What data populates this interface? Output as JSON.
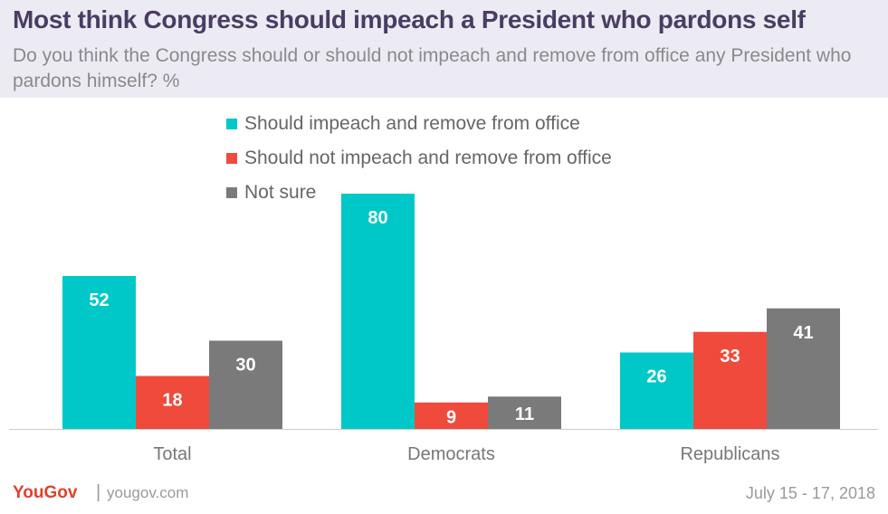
{
  "header": {
    "title": "Most think Congress should impeach a President who pardons self",
    "subtitle": "Do you think the Congress should or should not impeach and remove from office any President who pardons himself? %"
  },
  "footer": {
    "logo": "YouGov",
    "url": "yougov.com",
    "date": "July 15 - 17, 2018"
  },
  "chart_data": {
    "type": "bar",
    "title": "Most think Congress should impeach a President who pardons self",
    "subtitle": "Do you think the Congress should or should not impeach and remove from office any President who pardons himself? %",
    "categories": [
      "Total",
      "Democrats",
      "Republicans"
    ],
    "series": [
      {
        "name": "Should impeach and remove from office",
        "color": "#00c8c8",
        "values": [
          52,
          80,
          26
        ]
      },
      {
        "name": "Should not impeach and remove from office",
        "color": "#f04a3c",
        "values": [
          18,
          9,
          33
        ]
      },
      {
        "name": "Not sure",
        "color": "#7a7a7a",
        "values": [
          30,
          11,
          41
        ]
      }
    ],
    "ylim": [
      0,
      88
    ],
    "grid": false,
    "legend_position": "top-left"
  }
}
